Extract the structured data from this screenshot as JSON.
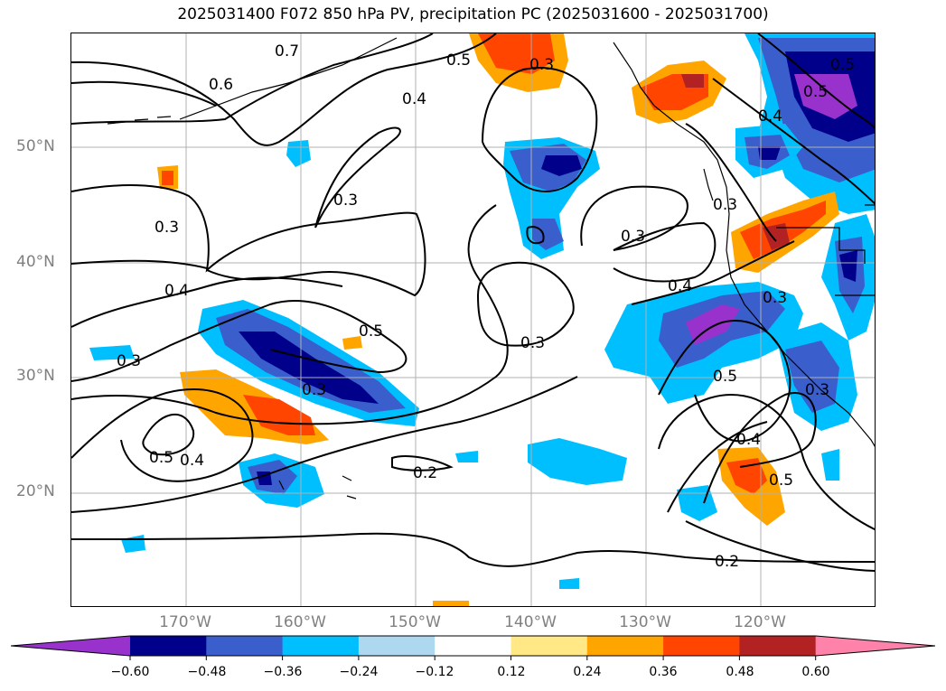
{
  "title": "2025031400 F072 850 hPa PV, precipitation PC (2025031600 - 2025031700)",
  "latitude_labels": [
    "50°N",
    "40°N",
    "30°N",
    "20°N"
  ],
  "longitude_labels": [
    "170°W",
    "160°W",
    "150°W",
    "140°W",
    "130°W",
    "120°W"
  ],
  "colorbar": {
    "extend": "both",
    "tick_labels": [
      "−0.60",
      "−0.48",
      "−0.36",
      "−0.24",
      "−0.12",
      "0.12",
      "0.24",
      "0.36",
      "0.48",
      "0.60"
    ],
    "colors": [
      "#9932cc",
      "#00008b",
      "#3a5fcd",
      "#00bfff",
      "#add8f0",
      "#ffffff",
      "#ffe885",
      "#ffa500",
      "#ff4500",
      "#b22222",
      "#ff82ab"
    ]
  },
  "contour_labels": [
    "0.7",
    "0.6",
    "0.5",
    "0.4",
    "0.3",
    "0.3",
    "0.3",
    "0.3",
    "0.3",
    "0.5",
    "0.3",
    "0.4",
    "0.3",
    "0.5",
    "0.4",
    "0.5",
    "0.4",
    "0.5",
    "0.3",
    "0.4",
    "0.5",
    "0.2",
    "0.2",
    "0.3",
    "0.3",
    "0.4",
    "0.5"
  ]
}
